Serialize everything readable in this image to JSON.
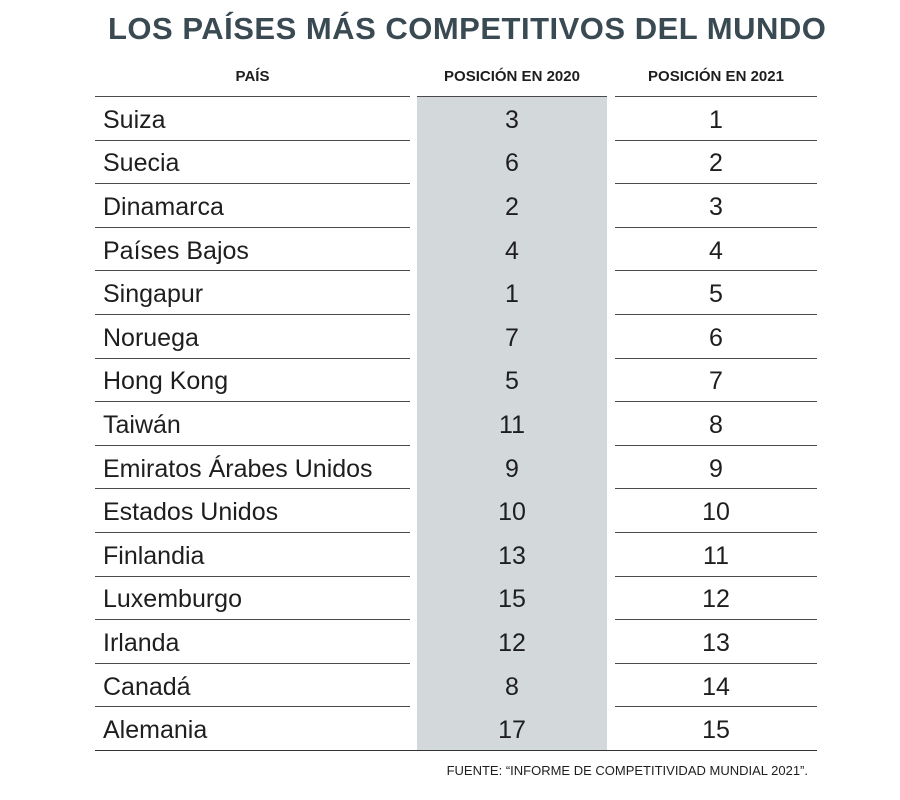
{
  "title": "LOS PAÍSES MÁS COMPETITIVOS DEL MUNDO",
  "source": "FUENTE: “INFORME DE COMPETITIVIDAD MUNDIAL 2021”.",
  "colors": {
    "title": "#3a4a52",
    "highlight_column": "#d3d9db",
    "rule": "#4a4a4a",
    "text": "#1e1e1e"
  },
  "chart_data": {
    "type": "table",
    "columns": [
      "PAÍS",
      "POSICIÓN EN 2020",
      "POSICIÓN EN 2021"
    ],
    "highlighted_column": "POSICIÓN EN 2020",
    "rows": [
      {
        "country": "Suiza",
        "pos_2020": "3",
        "pos_2021": "1"
      },
      {
        "country": "Suecia",
        "pos_2020": "6",
        "pos_2021": "2"
      },
      {
        "country": "Dinamarca",
        "pos_2020": "2",
        "pos_2021": "3"
      },
      {
        "country": "Países Bajos",
        "pos_2020": "4",
        "pos_2021": "4"
      },
      {
        "country": "Singapur",
        "pos_2020": "1",
        "pos_2021": "5"
      },
      {
        "country": "Noruega",
        "pos_2020": "7",
        "pos_2021": "6"
      },
      {
        "country": "Hong Kong",
        "pos_2020": "5",
        "pos_2021": "7"
      },
      {
        "country": "Taiwán",
        "pos_2020": "11",
        "pos_2021": "8"
      },
      {
        "country": "Emiratos Árabes Unidos",
        "pos_2020": "9",
        "pos_2021": "9"
      },
      {
        "country": "Estados Unidos",
        "pos_2020": "10",
        "pos_2021": "10"
      },
      {
        "country": "Finlandia",
        "pos_2020": "13",
        "pos_2021": "11"
      },
      {
        "country": "Luxemburgo",
        "pos_2020": "15",
        "pos_2021": "12"
      },
      {
        "country": "Irlanda",
        "pos_2020": "12",
        "pos_2021": "13"
      },
      {
        "country": "Canadá",
        "pos_2020": "8",
        "pos_2021": "14"
      },
      {
        "country": "Alemania",
        "pos_2020": "17",
        "pos_2021": "15"
      }
    ]
  }
}
